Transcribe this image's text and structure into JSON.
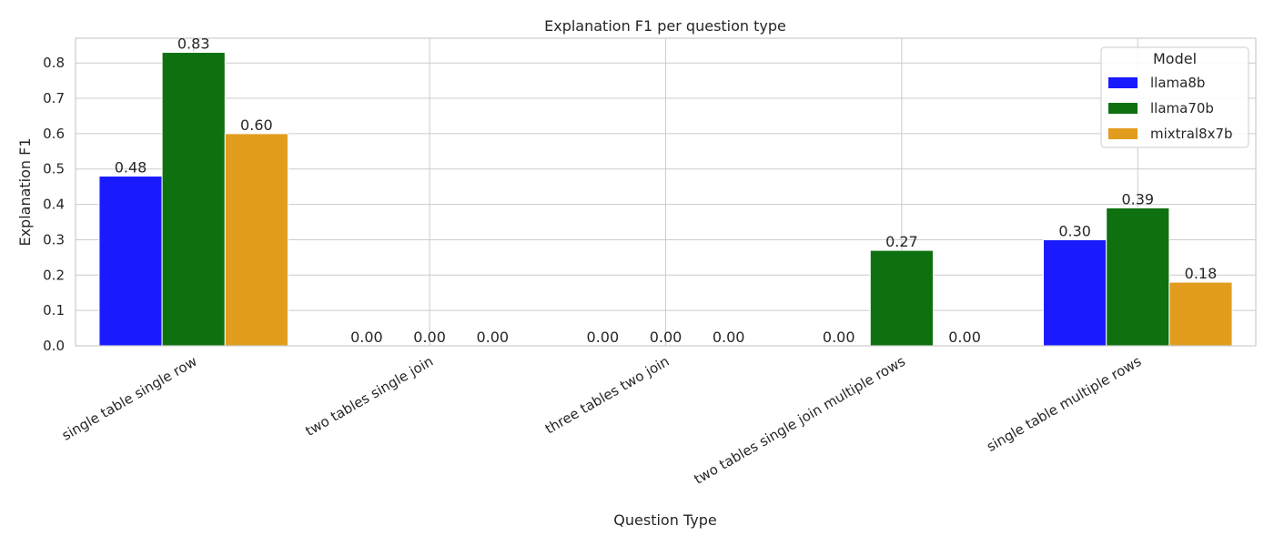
{
  "chart_data": {
    "type": "bar",
    "title": "Explanation F1 per question type",
    "xlabel": "Question Type",
    "ylabel": "Explanation F1",
    "ylim": [
      0,
      0.87
    ],
    "yticks": [
      "0.0",
      "0.1",
      "0.2",
      "0.3",
      "0.4",
      "0.5",
      "0.6",
      "0.7",
      "0.8"
    ],
    "grid": true,
    "legend_title": "Model",
    "legend_position": "top-right",
    "categories": [
      "single table single row",
      "two tables single join",
      "three tables two join",
      "two tables single join multiple rows",
      "single table multiple rows"
    ],
    "series": [
      {
        "name": "llama8b",
        "color": "#1a1aff",
        "values": [
          0.48,
          0.0,
          0.0,
          0.0,
          0.3
        ]
      },
      {
        "name": "llama70b",
        "color": "#0f7010",
        "values": [
          0.83,
          0.0,
          0.0,
          0.27,
          0.39
        ]
      },
      {
        "name": "mixtral8x7b",
        "color": "#e29c1e",
        "values": [
          0.6,
          0.0,
          0.0,
          0.0,
          0.18
        ]
      }
    ],
    "data_labels": [
      [
        "0.48",
        "0.00",
        "0.00",
        "0.00",
        "0.30"
      ],
      [
        "0.83",
        "0.00",
        "0.00",
        "0.27",
        "0.39"
      ],
      [
        "0.60",
        "0.00",
        "0.00",
        "0.00",
        "0.18"
      ]
    ]
  }
}
